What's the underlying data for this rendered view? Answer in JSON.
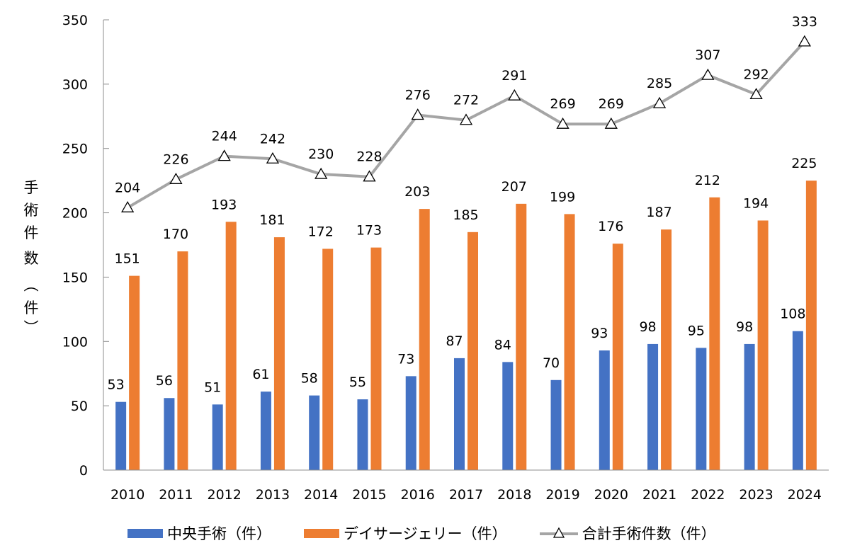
{
  "chart_data": {
    "type": "bar",
    "title": "",
    "xlabel": "",
    "ylabel": "手術件数（件）",
    "ylim": [
      0,
      350
    ],
    "yticks": [
      0,
      50,
      100,
      150,
      200,
      250,
      300,
      350
    ],
    "grid": false,
    "legend_position": "bottom",
    "categories": [
      "2010",
      "2011",
      "2012",
      "2013",
      "2014",
      "2015",
      "2016",
      "2017",
      "2018",
      "2019",
      "2020",
      "2021",
      "2022",
      "2023",
      "2024"
    ],
    "series": [
      {
        "name": "中央手術（件）",
        "type": "bar",
        "color": "#4472c4",
        "values": [
          53,
          56,
          51,
          61,
          58,
          55,
          73,
          87,
          84,
          70,
          93,
          98,
          95,
          98,
          108
        ]
      },
      {
        "name": "デイサージェリー（件）",
        "type": "bar",
        "color": "#ed7d31",
        "values": [
          151,
          170,
          193,
          181,
          172,
          173,
          203,
          185,
          207,
          199,
          176,
          187,
          212,
          194,
          225
        ]
      },
      {
        "name": "合計手術件数（件）",
        "type": "line",
        "color": "#a5a5a5",
        "marker": "triangle-open",
        "values": [
          204,
          226,
          244,
          242,
          230,
          228,
          276,
          272,
          291,
          269,
          269,
          285,
          307,
          292,
          333
        ]
      }
    ]
  },
  "ylabel_chars": [
    "手",
    "術",
    "件",
    "数",
    "（",
    "件",
    "）"
  ],
  "legend": {
    "items": [
      {
        "label": "中央手術（件）",
        "color": "#4472c4"
      },
      {
        "label": "デイサージェリー（件）",
        "color": "#ed7d31"
      },
      {
        "label": "合計手術件数（件）",
        "color": "#a5a5a5"
      }
    ]
  }
}
